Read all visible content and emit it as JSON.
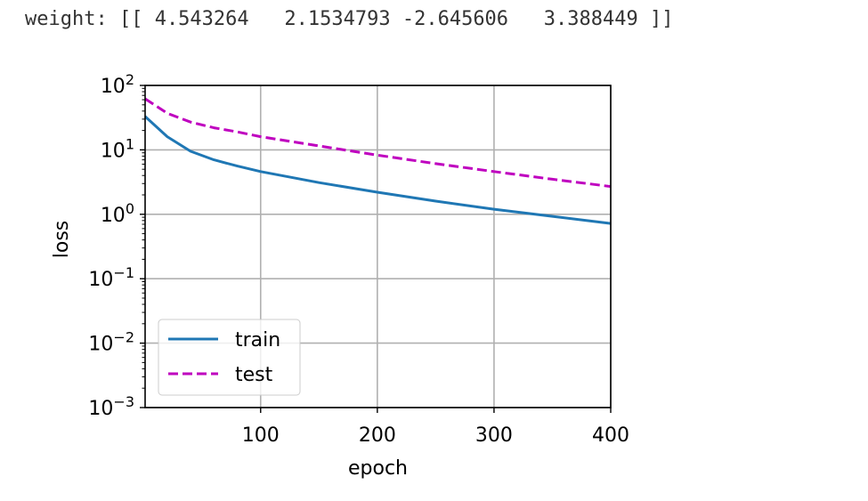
{
  "output_text": "weight: [[ 4.543264   2.1534793 -2.645606   3.388449 ]]",
  "chart_data": {
    "type": "line",
    "xlabel": "epoch",
    "ylabel": "loss",
    "xlim": [
      1,
      400
    ],
    "ylim": [
      0.001,
      100
    ],
    "yscale": "log",
    "grid": true,
    "legend_position": "lower-left",
    "x_ticks": [
      100,
      200,
      300,
      400
    ],
    "x_tick_labels": [
      "100",
      "200",
      "300",
      "400"
    ],
    "y_ticks": [
      0.001,
      0.01,
      0.1,
      1,
      10,
      100
    ],
    "y_tick_bases": [
      "10",
      "10",
      "10",
      "10",
      "10",
      "10"
    ],
    "y_tick_exps": [
      "−3",
      "−2",
      "−1",
      "0",
      "1",
      "2"
    ],
    "x": [
      1,
      20,
      40,
      60,
      80,
      100,
      150,
      200,
      250,
      300,
      350,
      400
    ],
    "series": [
      {
        "name": "train",
        "color": "#1f77b4",
        "dash": "solid",
        "values": [
          33,
          16,
          9.5,
          7,
          5.6,
          4.6,
          3.1,
          2.2,
          1.6,
          1.2,
          0.93,
          0.72
        ]
      },
      {
        "name": "test",
        "color": "#bf00bf",
        "dash": "dashed",
        "values": [
          62,
          37,
          27,
          22,
          19,
          16,
          11.5,
          8.3,
          6.1,
          4.6,
          3.5,
          2.7
        ]
      }
    ]
  }
}
